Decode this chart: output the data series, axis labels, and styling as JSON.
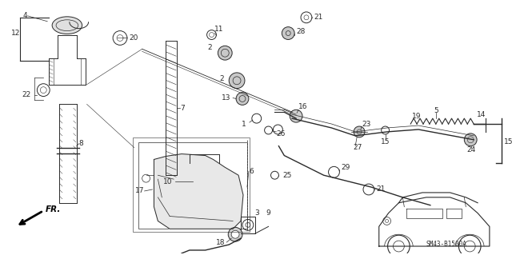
{
  "bg_color": "#ffffff",
  "fig_width": 6.4,
  "fig_height": 3.19,
  "dpi": 100,
  "diagram_code": "SM43-B1500A",
  "line_color": "#2a2a2a",
  "part_fontsize": 6.5
}
